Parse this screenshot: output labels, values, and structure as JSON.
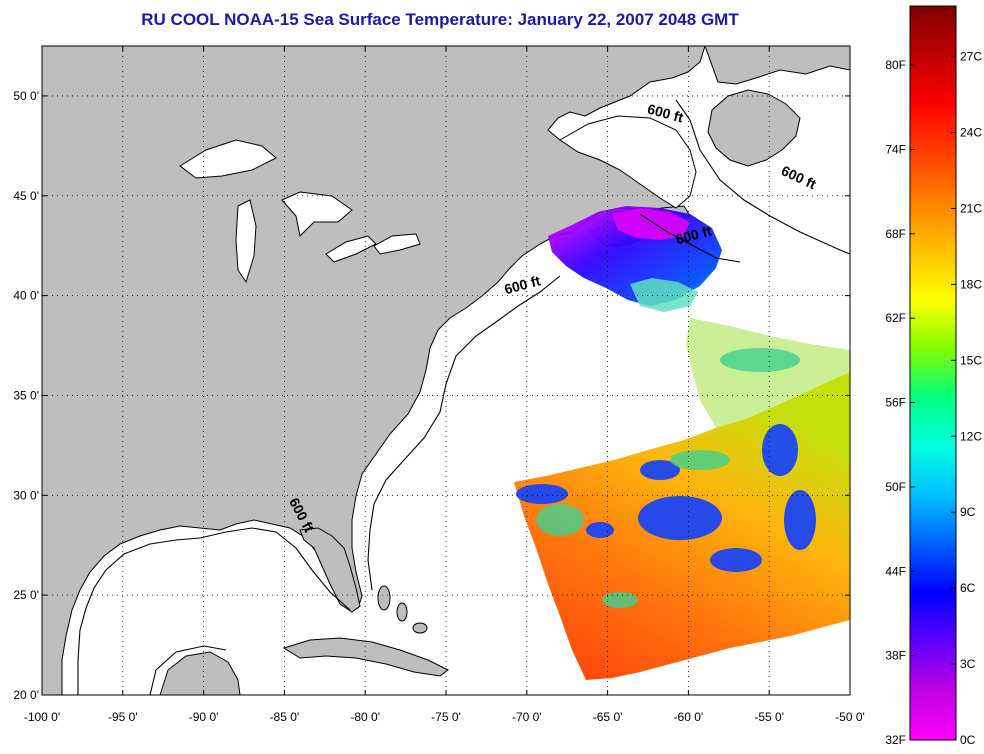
{
  "title": "RU COOL  NOAA-15  Sea Surface Temperature:  January 22, 2007 2048 GMT",
  "map": {
    "lon_range": [
      -100,
      -50
    ],
    "lat_range": [
      20,
      52.5
    ],
    "lon_ticks": [
      -100,
      -95,
      -90,
      -85,
      -80,
      -75,
      -70,
      -65,
      -60,
      -55,
      -50
    ],
    "lon_tick_labels": [
      "-100 0'",
      "-95 0'",
      "-90 0'",
      "-85 0'",
      "-80 0'",
      "-75 0'",
      "-70 0'",
      "-65 0'",
      "-60 0'",
      "-55 0'",
      "-50 0'"
    ],
    "lat_ticks": [
      20,
      25,
      30,
      35,
      40,
      45,
      50
    ],
    "lat_tick_labels": [
      "20 0'",
      "25 0'",
      "30 0'",
      "35 0'",
      "40 0'",
      "45 0'",
      "50 0'"
    ],
    "grid": "dotted",
    "land_color": "#bebebe",
    "ocean_color": "#ffffff",
    "contour_label": "600 ft",
    "contour_labels": [
      {
        "text": "600 ft",
        "lon": -61.5,
        "lat": 48.9,
        "angle": 15
      },
      {
        "text": "600 ft",
        "lon": -53.3,
        "lat": 45.7,
        "angle": 25
      },
      {
        "text": "600 ft",
        "lon": -59.6,
        "lat": 42.8,
        "angle": -15
      },
      {
        "text": "600 ft",
        "lon": -70.2,
        "lat": 40.3,
        "angle": -15
      },
      {
        "text": "600 ft",
        "lon": -84.2,
        "lat": 28.9,
        "angle": 62
      }
    ]
  },
  "colorbar": {
    "fahrenheit_labels": [
      "32F",
      "38F",
      "44F",
      "50F",
      "56F",
      "62F",
      "68F",
      "74F",
      "80F"
    ],
    "celsius_labels": [
      "0C",
      "3C",
      "6C",
      "9C",
      "12C",
      "15C",
      "18C",
      "21C",
      "24C",
      "27C"
    ],
    "celsius_range": [
      0,
      29
    ],
    "colors": [
      "#ff00ff",
      "#c000e0",
      "#6000ff",
      "#0000ff",
      "#0060ff",
      "#00c0ff",
      "#00ffe0",
      "#00ff80",
      "#80ff00",
      "#ffff00",
      "#ffc000",
      "#ff8000",
      "#ff4000",
      "#ff0000",
      "#c00000",
      "#800000"
    ]
  }
}
